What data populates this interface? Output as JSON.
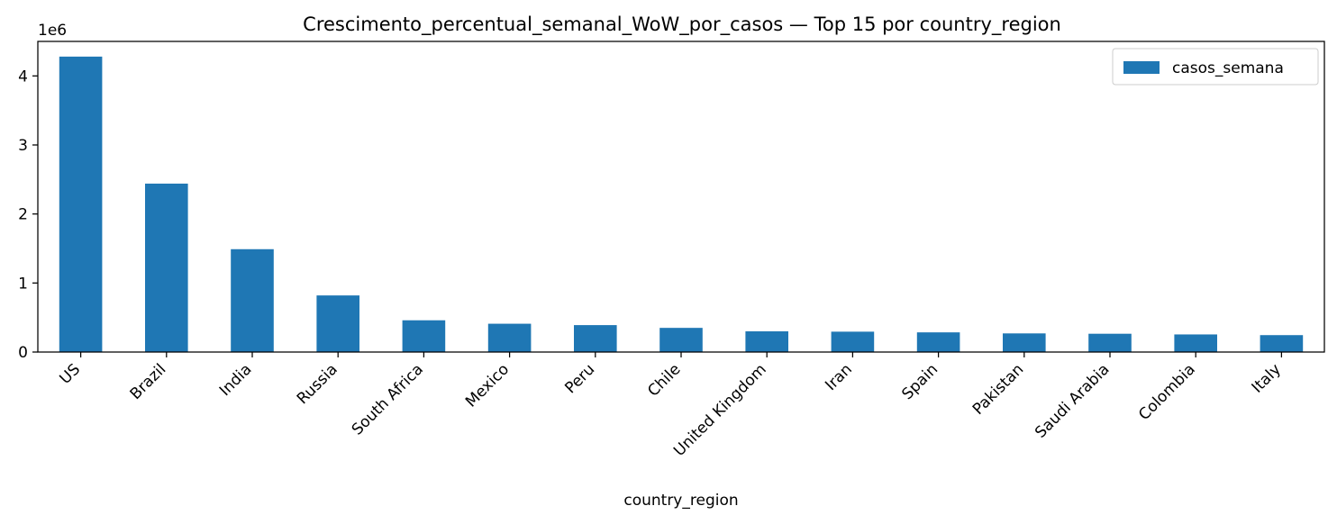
{
  "chart_data": {
    "type": "bar",
    "title": "Crescimento_percentual_semanal_WoW_por_casos — Top 15 por country_region",
    "xlabel": "country_region",
    "ylabel": "",
    "y_offset_label": "1e6",
    "y_ticks": [
      0,
      1,
      2,
      3,
      4
    ],
    "y_tick_labels": [
      "0",
      "1",
      "2",
      "3",
      "4"
    ],
    "ylim": [
      0,
      4500000
    ],
    "grid": false,
    "legend_position": "top-right",
    "categories": [
      "US",
      "Brazil",
      "India",
      "Russia",
      "South Africa",
      "Mexico",
      "Peru",
      "Chile",
      "United Kingdom",
      "Iran",
      "Spain",
      "Pakistan",
      "Saudi Arabia",
      "Colombia",
      "Italy"
    ],
    "series": [
      {
        "name": "casos_semana",
        "color": "#1f77b4",
        "values": [
          4280000,
          2440000,
          1490000,
          820000,
          460000,
          410000,
          390000,
          350000,
          300000,
          295000,
          285000,
          270000,
          265000,
          255000,
          245000
        ]
      }
    ]
  }
}
